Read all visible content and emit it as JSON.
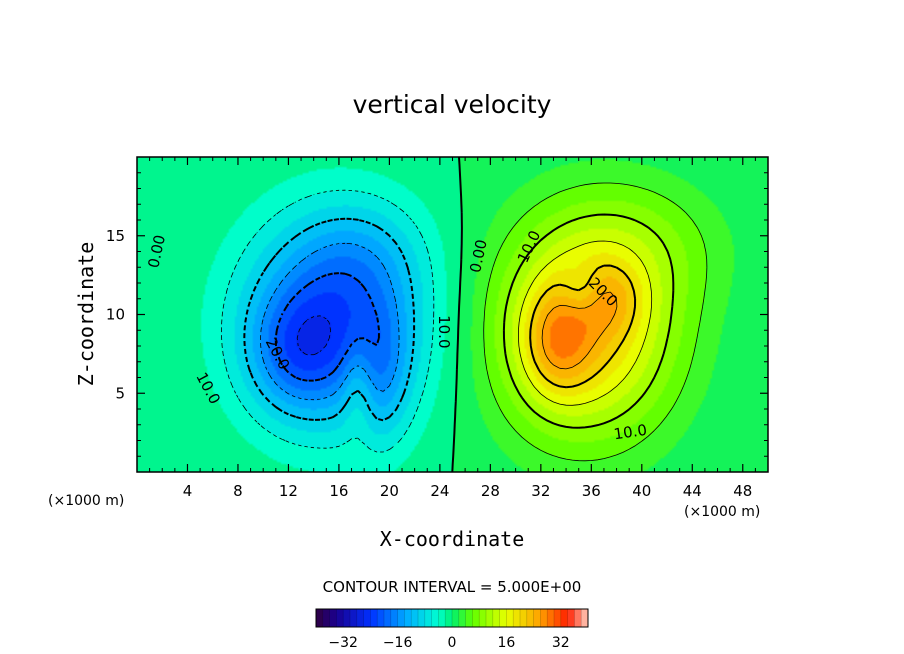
{
  "chart_data": {
    "type": "heatmap",
    "title": "vertical velocity",
    "xlabel": "X-coordinate",
    "ylabel": "Z-coordinate",
    "x_unit_left": "(×1000 m)",
    "x_unit_right": "(×1000 m)",
    "xlim": [
      0,
      50
    ],
    "ylim": [
      0,
      20
    ],
    "xticks": [
      4,
      8,
      12,
      16,
      20,
      24,
      28,
      32,
      36,
      40,
      44,
      48
    ],
    "xtick_labels": [
      "4",
      "8",
      "12",
      "16",
      "20",
      "24",
      "28",
      "32",
      "36",
      "40",
      "44",
      "48"
    ],
    "yticks": [
      5,
      10,
      15
    ],
    "ytick_labels": [
      "5",
      "10",
      "15"
    ],
    "contour_interval_text": "CONTOUR INTERVAL = 5.000E+00",
    "contour_interval": 5.0,
    "colorbar": {
      "range": [
        -40,
        40
      ],
      "ticks": [
        -32,
        -16,
        0,
        16,
        32
      ],
      "tick_labels": [
        "−32",
        "−16",
        "0",
        "16",
        "32"
      ]
    },
    "cells": [
      {
        "name": "downdraft-cell",
        "sign": "negative",
        "center_x": 14.5,
        "center_z": 8.5,
        "peak": -25
      },
      {
        "name": "updraft-cell",
        "sign": "positive",
        "center_x": 33.2,
        "center_z": 8.2,
        "peak": 33
      }
    ],
    "contour_labels": [
      {
        "text": "0.00",
        "x": 1.6,
        "z": 14.0,
        "angle": -78
      },
      {
        "text": "10.0",
        "x": 5.6,
        "z": 5.3,
        "angle": 62
      },
      {
        "text": "20.0",
        "x": 11.1,
        "z": 7.5,
        "angle": 62
      },
      {
        "text": "10.0",
        "x": 24.3,
        "z": 8.9,
        "angle": 90
      },
      {
        "text": "0.00",
        "x": 27.1,
        "z": 13.7,
        "angle": -78
      },
      {
        "text": "10.0",
        "x": 31.1,
        "z": 14.3,
        "angle": -65
      },
      {
        "text": "20.0",
        "x": 36.9,
        "z": 11.4,
        "angle": 45
      },
      {
        "text": "10.0",
        "x": 39.1,
        "z": 2.5,
        "angle": -8
      }
    ]
  }
}
